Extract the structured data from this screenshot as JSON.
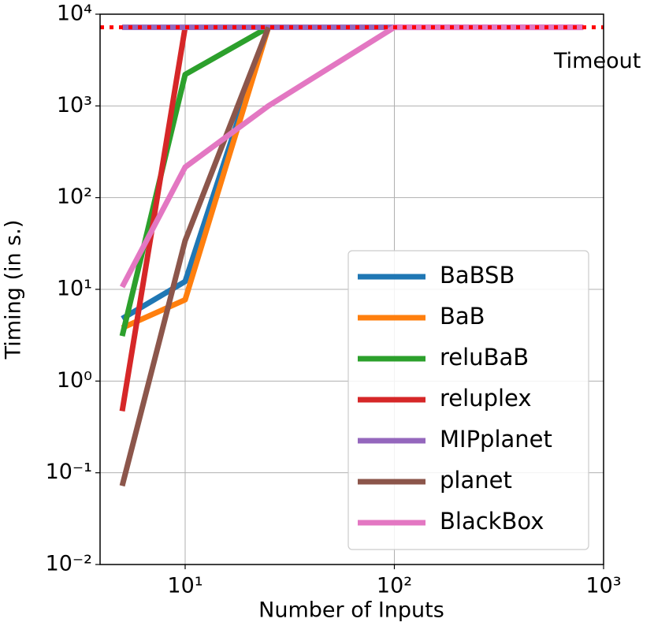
{
  "chart_data": {
    "type": "line",
    "xlabel": "Number of Inputs",
    "ylabel": "Timing (in s.)",
    "xscale": "log",
    "yscale": "log",
    "grid": true,
    "legend": "lower right",
    "x": [
      5,
      10,
      25,
      100,
      800
    ],
    "xlim": [
      3.92,
      1000
    ],
    "ylim": [
      0.01,
      10000
    ],
    "xticks": [
      {
        "value": 10,
        "label": "10¹"
      },
      {
        "value": 100,
        "label": "10²"
      },
      {
        "value": 1000,
        "label": "10³"
      }
    ],
    "yticks": [
      {
        "value": 0.01,
        "label": "10⁻²"
      },
      {
        "value": 0.1,
        "label": "10⁻¹"
      },
      {
        "value": 1,
        "label": "10⁰"
      },
      {
        "value": 10,
        "label": "10¹"
      },
      {
        "value": 100,
        "label": "10²"
      },
      {
        "value": 1000,
        "label": "10³"
      },
      {
        "value": 10000,
        "label": "10⁴"
      }
    ],
    "series": [
      {
        "name": "BaBSB",
        "color": "#1f77b4",
        "values": [
          4.8,
          12.2,
          7200,
          null,
          null
        ]
      },
      {
        "name": "BaB",
        "color": "#ff7f0e",
        "values": [
          3.8,
          7.7,
          7200,
          null,
          null
        ]
      },
      {
        "name": "reluBaB",
        "color": "#2ca02c",
        "values": [
          3.1,
          2200,
          7200,
          null,
          null
        ]
      },
      {
        "name": "reluplex",
        "color": "#d62728",
        "values": [
          0.47,
          7200,
          null,
          null,
          null
        ]
      },
      {
        "name": "MIPplanet",
        "color": "#9467bd",
        "values": [
          7200,
          7200,
          7200,
          7200,
          7200
        ]
      },
      {
        "name": "planet",
        "color": "#8c564b",
        "values": [
          0.072,
          34,
          7200,
          null,
          null
        ]
      },
      {
        "name": "BlackBox",
        "color": "#e377c2",
        "values": [
          10.6,
          215,
          1000,
          7200,
          7200
        ]
      }
    ],
    "annotations": [
      {
        "text": "Timeout",
        "value": 7200,
        "color": "#ff0000"
      }
    ]
  }
}
